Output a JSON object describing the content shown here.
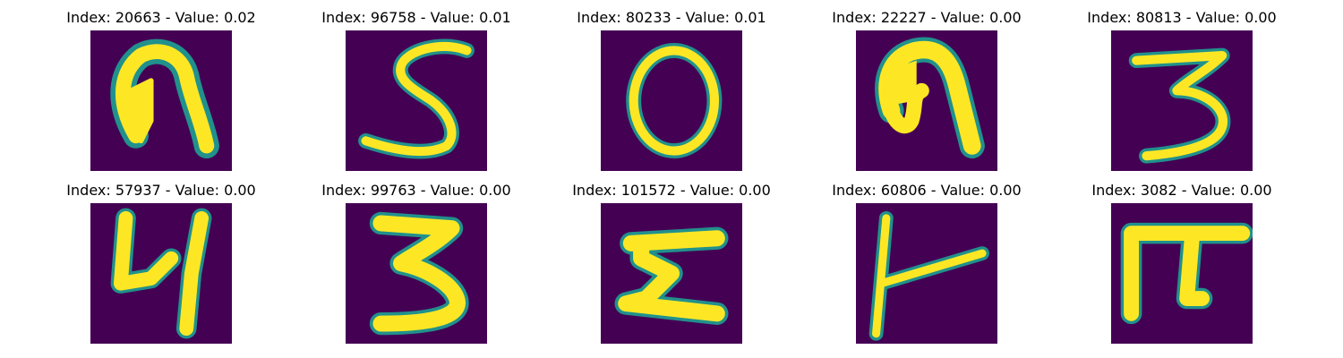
{
  "palette": {
    "background": "#440154",
    "edge": "#21918c",
    "mid": "#5ec962",
    "stroke": "#fde725"
  },
  "panels": [
    {
      "title": "Index: 20663 - Value: 0.02",
      "glyph": "arch-filled-icon"
    },
    {
      "title": "Index: 96758 - Value: 0.01",
      "glyph": "digit-5-icon"
    },
    {
      "title": "Index: 80233 - Value: 0.01",
      "glyph": "digit-0-icon"
    },
    {
      "title": "Index: 22227 - Value: 0.00",
      "glyph": "arch-curl-icon"
    },
    {
      "title": "Index: 80813 - Value: 0.00",
      "glyph": "digit-3-icon"
    },
    {
      "title": "Index: 57937 - Value: 0.00",
      "glyph": "digit-4-icon"
    },
    {
      "title": "Index: 99763 - Value: 0.00",
      "glyph": "digit-3-bold-icon"
    },
    {
      "title": "Index: 101572 - Value: 0.00",
      "glyph": "digit-5-sharp-icon"
    },
    {
      "title": "Index: 60806 - Value: 0.00",
      "glyph": "stroke-t-icon"
    },
    {
      "title": "Index: 3082 - Value: 0.00",
      "glyph": "pi-shape-icon"
    }
  ]
}
